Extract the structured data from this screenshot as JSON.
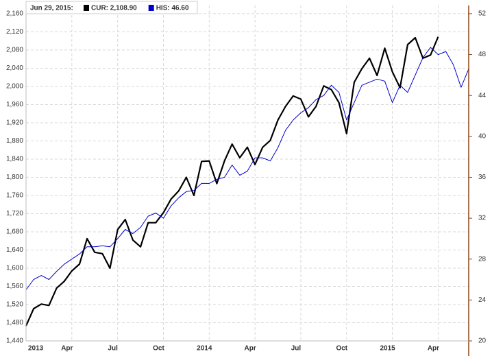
{
  "chart_data": {
    "type": "line",
    "header": "Jun 29, 2015:",
    "categories": [
      "2013",
      null,
      null,
      null,
      null,
      null,
      "Apr",
      null,
      null,
      null,
      null,
      null,
      "Jul",
      null,
      null,
      null,
      null,
      null,
      "Oct",
      null,
      null,
      null,
      null,
      null,
      "2014",
      null,
      null,
      null,
      null,
      null,
      "Apr",
      null,
      null,
      null,
      null,
      null,
      "Jul",
      null,
      null,
      null,
      null,
      null,
      "Oct",
      null,
      null,
      null,
      null,
      null,
      "2015",
      null,
      null,
      null,
      null,
      null,
      "Apr",
      null,
      null,
      null,
      null
    ],
    "series": [
      {
        "name": "CUR: 2,108.90",
        "color": "#000000",
        "axis": "y",
        "values": [
          1473,
          1511,
          1521,
          1518,
          1556,
          1571,
          1594,
          1609,
          1665,
          1635,
          1632,
          1600,
          1685,
          1707,
          1662,
          1647,
          1700,
          1700,
          1722,
          1752,
          1770,
          1800,
          1760,
          1835,
          1836,
          1786,
          1836,
          1873,
          1843,
          1866,
          1828,
          1866,
          1881,
          1926,
          1956,
          1979,
          1972,
          1933,
          1956,
          2001,
          1993,
          1964,
          1896,
          2009,
          2039,
          2062,
          2024,
          2084,
          2032,
          1997,
          2092,
          2107,
          2062,
          2069,
          2109,
          null,
          null,
          null,
          null
        ]
      },
      {
        "name": "HIS: 46.60",
        "color": "#0000cc",
        "axis": "y2",
        "values": [
          25.0,
          26.0,
          26.4,
          26.0,
          26.8,
          27.5,
          28.0,
          28.5,
          29.2,
          29.2,
          29.3,
          29.2,
          30.0,
          30.9,
          30.5,
          31.1,
          32.2,
          32.5,
          32.0,
          33.2,
          34.0,
          34.6,
          34.7,
          35.4,
          35.4,
          35.8,
          36.0,
          37.2,
          36.2,
          36.6,
          37.9,
          37.9,
          37.6,
          38.9,
          40.6,
          41.6,
          42.3,
          42.8,
          43.6,
          44.0,
          45.0,
          44.3,
          41.6,
          43.3,
          45.0,
          45.3,
          45.6,
          45.4,
          43.3,
          45.0,
          44.3,
          46.0,
          47.7,
          48.7,
          48.0,
          48.3,
          47.0,
          44.8,
          46.6
        ]
      }
    ],
    "ylim": [
      1440,
      2178
    ],
    "yticks": [
      {
        "value": 1440,
        "label": "1,440"
      },
      {
        "value": 1480,
        "label": "1,480"
      },
      {
        "value": 1520,
        "label": "1,520"
      },
      {
        "value": 1560,
        "label": "1,560"
      },
      {
        "value": 1600,
        "label": "1,600"
      },
      {
        "value": 1640,
        "label": "1,640"
      },
      {
        "value": 1680,
        "label": "1,680"
      },
      {
        "value": 1720,
        "label": "1,720"
      },
      {
        "value": 1760,
        "label": "1,760"
      },
      {
        "value": 1800,
        "label": "1,800"
      },
      {
        "value": 1840,
        "label": "1,840"
      },
      {
        "value": 1880,
        "label": "1,880"
      },
      {
        "value": 1920,
        "label": "1,920"
      },
      {
        "value": 1960,
        "label": "1,960"
      },
      {
        "value": 2000,
        "label": "2,000"
      },
      {
        "value": 2040,
        "label": "2,040"
      },
      {
        "value": 2080,
        "label": "2,080"
      },
      {
        "value": 2120,
        "label": "2,120"
      },
      {
        "value": 2160,
        "label": "2,160"
      }
    ],
    "y2lim": [
      20,
      52.8
    ],
    "y2ticks": [
      20,
      24,
      28,
      32,
      36,
      40,
      44,
      48,
      52
    ],
    "grid": true
  }
}
